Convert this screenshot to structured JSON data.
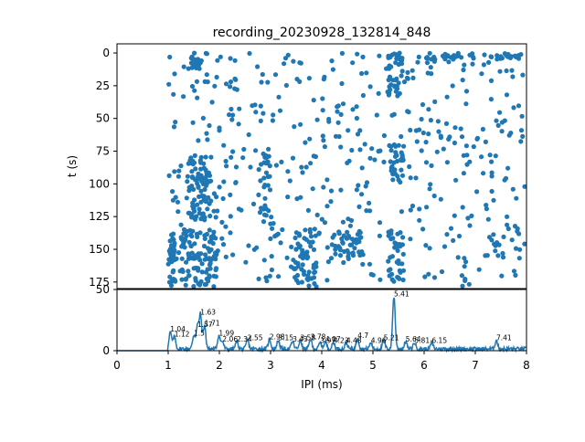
{
  "figure": {
    "title": "recording_20230928_132814_848"
  },
  "chart_data": [
    {
      "type": "scatter",
      "name": "raster",
      "ylabel": "t (s)",
      "xlabel": "",
      "xlim": [
        0,
        8
      ],
      "ylim": [
        180,
        -7
      ],
      "yticks": [
        0,
        25,
        50,
        75,
        100,
        125,
        150,
        175
      ],
      "y_inverted": true,
      "marker_color": "#1f77b4",
      "grid": false,
      "legend": "none",
      "clusters": [
        {
          "x": [
            1.0,
            1.15
          ],
          "y": [
            138,
            180
          ],
          "n": 40
        },
        {
          "x": [
            1.45,
            1.65
          ],
          "y": [
            0,
            12
          ],
          "n": 25
        },
        {
          "x": [
            1.35,
            1.85
          ],
          "y": [
            78,
            128
          ],
          "n": 80
        },
        {
          "x": [
            1.25,
            1.95
          ],
          "y": [
            136,
            180
          ],
          "n": 90
        },
        {
          "x": [
            2.8,
            3.0
          ],
          "y": [
            78,
            130
          ],
          "n": 25
        },
        {
          "x": [
            3.4,
            3.9
          ],
          "y": [
            134,
            180
          ],
          "n": 60
        },
        {
          "x": [
            4.2,
            4.8
          ],
          "y": [
            136,
            158
          ],
          "n": 45
        },
        {
          "x": [
            5.3,
            5.6
          ],
          "y": [
            0,
            35
          ],
          "n": 35
        },
        {
          "x": [
            5.3,
            5.6
          ],
          "y": [
            70,
            100
          ],
          "n": 30
        },
        {
          "x": [
            5.3,
            5.6
          ],
          "y": [
            135,
            175
          ],
          "n": 30
        },
        {
          "x": [
            6.0,
            7.0
          ],
          "y": [
            0,
            5
          ],
          "n": 25
        },
        {
          "x": [
            7.3,
            7.9
          ],
          "y": [
            0,
            5
          ],
          "n": 20
        },
        {
          "x": [
            1.0,
            8.0
          ],
          "y": [
            0,
            180
          ],
          "n": 520
        }
      ]
    },
    {
      "type": "line",
      "name": "histogram",
      "xlabel": "IPI (ms)",
      "ylabel": "",
      "xlim": [
        0,
        8
      ],
      "ylim": [
        0,
        50
      ],
      "xticks": [
        0,
        1,
        2,
        3,
        4,
        5,
        6,
        7,
        8
      ],
      "yticks": [
        0,
        50
      ],
      "line_color": "#1f77b4",
      "peaks": [
        {
          "x": 1.04,
          "y": 14
        },
        {
          "x": 1.12,
          "y": 10
        },
        {
          "x": 1.5,
          "y": 11
        },
        {
          "x": 1.57,
          "y": 18
        },
        {
          "x": 1.63,
          "y": 28
        },
        {
          "x": 1.71,
          "y": 19
        },
        {
          "x": 1.99,
          "y": 11
        },
        {
          "x": 2.06,
          "y": 6
        },
        {
          "x": 2.34,
          "y": 6
        },
        {
          "x": 2.55,
          "y": 7
        },
        {
          "x": 2.98,
          "y": 8
        },
        {
          "x": 3.15,
          "y": 7
        },
        {
          "x": 3.43,
          "y": 6
        },
        {
          "x": 3.58,
          "y": 7
        },
        {
          "x": 3.78,
          "y": 8
        },
        {
          "x": 3.97,
          "y": 5
        },
        {
          "x": 4.07,
          "y": 6
        },
        {
          "x": 4.23,
          "y": 5
        },
        {
          "x": 4.48,
          "y": 5
        },
        {
          "x": 4.7,
          "y": 9
        },
        {
          "x": 4.96,
          "y": 5
        },
        {
          "x": 5.21,
          "y": 7
        },
        {
          "x": 5.41,
          "y": 43
        },
        {
          "x": 5.64,
          "y": 6
        },
        {
          "x": 5.81,
          "y": 5
        },
        {
          "x": 6.15,
          "y": 5
        },
        {
          "x": 7.41,
          "y": 7
        }
      ],
      "baseline_noise": 3,
      "annotations": [
        {
          "x": 1.04,
          "y": 14,
          "text": "1.04"
        },
        {
          "x": 1.12,
          "y": 10,
          "text": "1.12"
        },
        {
          "x": 1.5,
          "y": 11,
          "text": "1.5"
        },
        {
          "x": 1.57,
          "y": 18,
          "text": "1.57"
        },
        {
          "x": 1.63,
          "y": 28,
          "text": "1.63"
        },
        {
          "x": 1.71,
          "y": 19,
          "text": "1.71"
        },
        {
          "x": 1.99,
          "y": 11,
          "text": "1.99"
        },
        {
          "x": 2.06,
          "y": 6,
          "text": "2.06"
        },
        {
          "x": 2.34,
          "y": 6,
          "text": "2.34"
        },
        {
          "x": 2.55,
          "y": 7,
          "text": "2.55"
        },
        {
          "x": 2.98,
          "y": 8,
          "text": "2.98"
        },
        {
          "x": 3.15,
          "y": 7,
          "text": "3.15"
        },
        {
          "x": 3.43,
          "y": 6,
          "text": "3.43"
        },
        {
          "x": 3.58,
          "y": 7,
          "text": "3.58"
        },
        {
          "x": 3.78,
          "y": 8,
          "text": "3.78"
        },
        {
          "x": 3.97,
          "y": 5,
          "text": "3.97"
        },
        {
          "x": 4.07,
          "y": 6,
          "text": "4.07"
        },
        {
          "x": 4.23,
          "y": 5,
          "text": "4.23"
        },
        {
          "x": 4.48,
          "y": 5,
          "text": "4.48"
        },
        {
          "x": 4.7,
          "y": 9,
          "text": "4.7"
        },
        {
          "x": 4.96,
          "y": 5,
          "text": "4.96"
        },
        {
          "x": 5.21,
          "y": 7,
          "text": "5.21"
        },
        {
          "x": 5.41,
          "y": 43,
          "text": "5.41"
        },
        {
          "x": 5.64,
          "y": 6,
          "text": "5.64"
        },
        {
          "x": 5.81,
          "y": 5,
          "text": "5.81"
        },
        {
          "x": 6.15,
          "y": 5,
          "text": "6.15"
        },
        {
          "x": 7.41,
          "y": 7,
          "text": "7.41"
        }
      ]
    }
  ]
}
